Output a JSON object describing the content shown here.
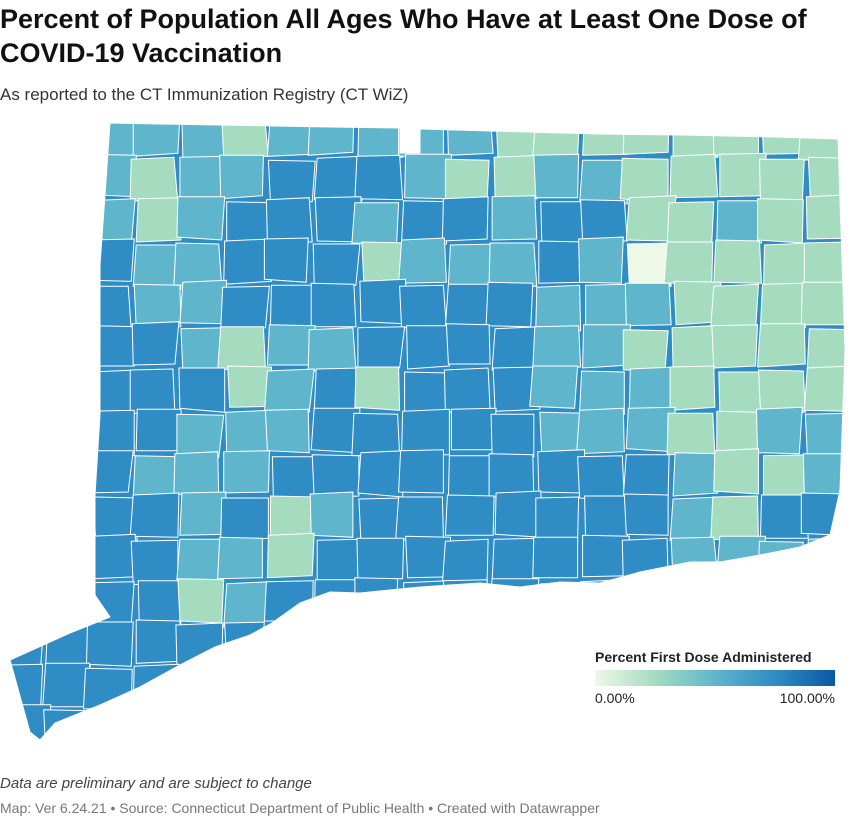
{
  "header": {
    "title": "Percent of Population All Ages Who Have at Least One Dose of COVID-19 Vaccination",
    "subtitle": "As reported to the CT Immunization Registry (CT WiZ)"
  },
  "legend": {
    "title": "Percent First Dose Administered",
    "min_label": "0.00%",
    "max_label": "100.00%",
    "colors": [
      "#eef8e6",
      "#a5dcc0",
      "#5fb6cc",
      "#2f8cc5",
      "#0b58a2"
    ]
  },
  "colors": {
    "boundary": "#ffffff"
  },
  "footer": {
    "note": "Data are preliminary and are subject to change",
    "source": "Map: Ver 6.24.21 • Source: Connecticut Department of Public Health • Created with Datawrapper"
  }
}
